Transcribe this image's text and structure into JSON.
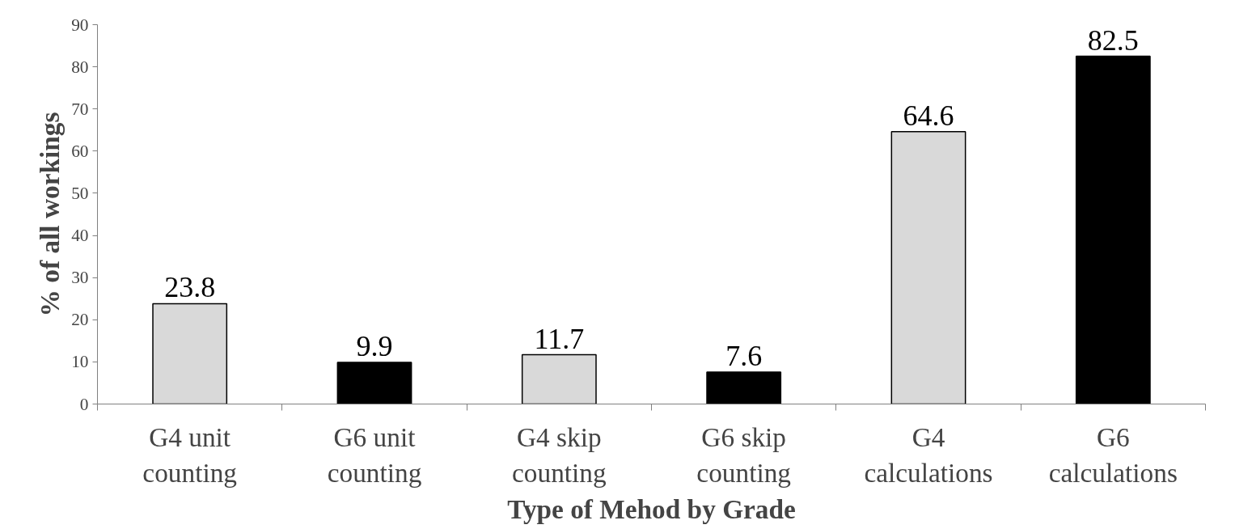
{
  "chart_data": {
    "type": "bar",
    "xlabel": "Type of Mehod by Grade",
    "ylabel": "% of all workings",
    "categories": [
      "G4 unit\ncounting",
      "G6 unit\ncounting",
      "G4 skip\ncounting",
      "G6 skip\ncounting",
      "G4\ncalculations",
      "G6\ncalculations"
    ],
    "values": [
      23.8,
      9.9,
      11.7,
      7.6,
      64.6,
      82.5
    ],
    "colors": [
      "#d9d9d9",
      "#000000",
      "#d9d9d9",
      "#000000",
      "#d9d9d9",
      "#000000"
    ],
    "ylim": [
      0,
      90
    ],
    "yticks": [
      0,
      10,
      20,
      30,
      40,
      50,
      60,
      70,
      80,
      90
    ],
    "grid": false,
    "data_labels": true
  }
}
